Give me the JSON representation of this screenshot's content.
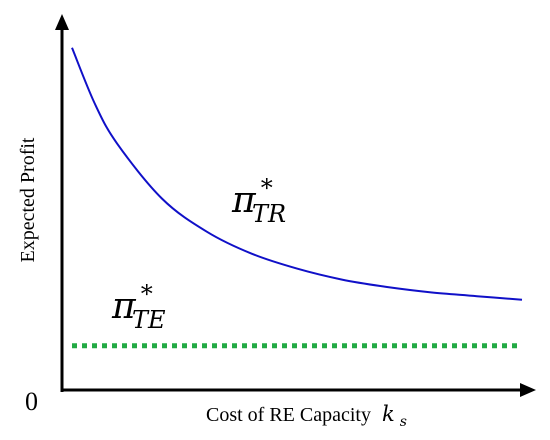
{
  "chart_data": {
    "type": "line",
    "title": "",
    "xlabel": "Cost of RE Capacity",
    "xlabel_symbol": "k",
    "xlabel_symbol_subscript": "s",
    "ylabel": "Expected  Profit",
    "origin_label": "0",
    "axis_tick_labels": "none",
    "grid": false,
    "legend": "none",
    "series": [
      {
        "label_symbol": "π",
        "label_superscript": "*",
        "label_subscript": "TR",
        "color": "#1010c8",
        "style": "solid",
        "x": [
          0.0,
          0.05,
          0.1,
          0.2,
          0.3,
          0.4,
          0.5,
          0.6,
          0.7,
          0.8,
          0.9,
          1.0
        ],
        "y": [
          0.93,
          0.78,
          0.67,
          0.52,
          0.43,
          0.37,
          0.33,
          0.3,
          0.28,
          0.265,
          0.255,
          0.245
        ]
      },
      {
        "label_symbol": "π",
        "label_superscript": "*",
        "label_subscript": "TE",
        "color": "#22aa44",
        "style": "dotted",
        "x": [
          0.0,
          1.0
        ],
        "y": [
          0.12,
          0.12
        ]
      }
    ]
  }
}
